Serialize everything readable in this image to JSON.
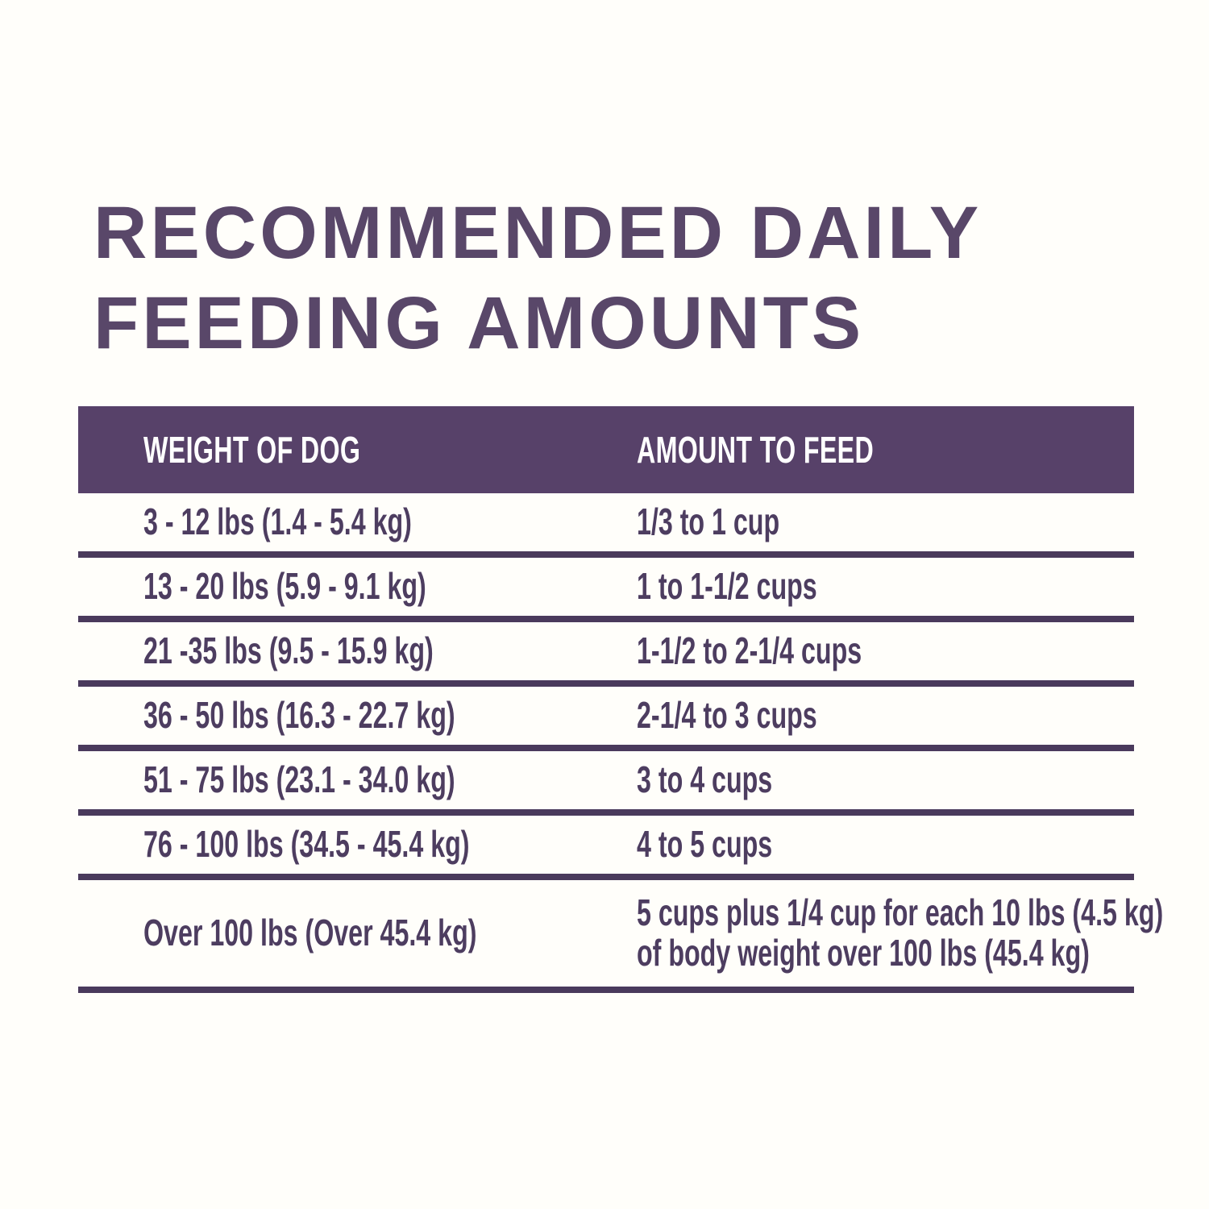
{
  "page": {
    "title_line1": "RECOMMENDED DAILY",
    "title_line2": "FEEDING AMOUNTS"
  },
  "colors": {
    "title_text": "#594769",
    "header_bg": "#574169",
    "header_text": "#ffffff",
    "row_text": "#4d3d60",
    "separator_line": "#4a3a5c",
    "background": "#fffefa"
  },
  "table": {
    "columns": [
      {
        "label": "WEIGHT OF DOG"
      },
      {
        "label": "AMOUNT TO FEED"
      }
    ],
    "rows": [
      {
        "weight": "3 - 12 lbs (1.4 - 5.4 kg)",
        "amount_lines": [
          "1/3 to 1 cup"
        ]
      },
      {
        "weight": "13 - 20 lbs (5.9 - 9.1 kg)",
        "amount_lines": [
          "1 to 1-1/2 cups"
        ]
      },
      {
        "weight": "21 -35 lbs (9.5 - 15.9 kg)",
        "amount_lines": [
          "1-1/2 to 2-1/4 cups"
        ]
      },
      {
        "weight": "36 - 50 lbs (16.3 - 22.7 kg)",
        "amount_lines": [
          "2-1/4 to 3 cups"
        ]
      },
      {
        "weight": "51 - 75 lbs (23.1 - 34.0 kg)",
        "amount_lines": [
          "3 to 4 cups"
        ]
      },
      {
        "weight": "76 - 100 lbs (34.5 - 45.4 kg)",
        "amount_lines": [
          "4 to 5 cups"
        ]
      },
      {
        "weight": "Over 100 lbs (Over 45.4 kg)",
        "amount_lines": [
          "5 cups plus 1/4 cup for each 10 lbs (4.5 kg)",
          "of body weight over 100 lbs (45.4 kg)"
        ]
      }
    ]
  }
}
